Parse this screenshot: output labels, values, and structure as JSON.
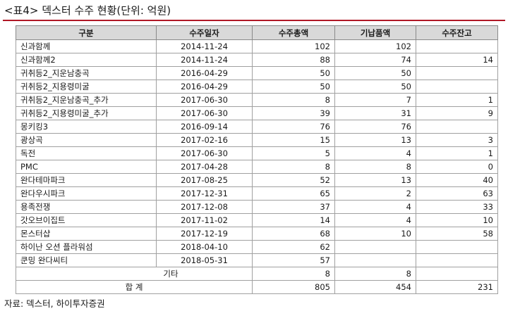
{
  "caption": "<표4>  덱스터 수주 현황(단위: 억원)",
  "columns": [
    "구분",
    "수주일자",
    "수주총액",
    "기납품액",
    "수주잔고"
  ],
  "rows": [
    {
      "name": "신과함께",
      "date": "2014-11-24",
      "total": "102",
      "delivered": "102",
      "backlog": ""
    },
    {
      "name": "신과함께2",
      "date": "2014-11-24",
      "total": "88",
      "delivered": "74",
      "backlog": "14"
    },
    {
      "name": "귀취등2_지운남충곡",
      "date": "2016-04-29",
      "total": "50",
      "delivered": "50",
      "backlog": ""
    },
    {
      "name": "귀취등2_지용령미굴",
      "date": "2016-04-29",
      "total": "50",
      "delivered": "50",
      "backlog": ""
    },
    {
      "name": "귀취등2_지운남충곡_추가",
      "date": "2017-06-30",
      "total": "8",
      "delivered": "7",
      "backlog": "1"
    },
    {
      "name": "귀취등2_지용령미굴_추가",
      "date": "2017-06-30",
      "total": "39",
      "delivered": "31",
      "backlog": "9"
    },
    {
      "name": "몽키킹3",
      "date": "2016-09-14",
      "total": "76",
      "delivered": "76",
      "backlog": ""
    },
    {
      "name": "광상곡",
      "date": "2017-02-16",
      "total": "15",
      "delivered": "13",
      "backlog": "3"
    },
    {
      "name": "독전",
      "date": "2017-06-30",
      "total": "5",
      "delivered": "4",
      "backlog": "1"
    },
    {
      "name": "PMC",
      "date": "2017-04-28",
      "total": "8",
      "delivered": "8",
      "backlog": "0"
    },
    {
      "name": "완다테마파크",
      "date": "2017-08-25",
      "total": "52",
      "delivered": "13",
      "backlog": "40"
    },
    {
      "name": "완다우시파크",
      "date": "2017-12-31",
      "total": "65",
      "delivered": "2",
      "backlog": "63"
    },
    {
      "name": "용족전쟁",
      "date": "2017-12-08",
      "total": "37",
      "delivered": "4",
      "backlog": "33"
    },
    {
      "name": "갓오브이집트",
      "date": "2017-11-02",
      "total": "14",
      "delivered": "4",
      "backlog": "10"
    },
    {
      "name": "몬스터샵",
      "date": "2017-12-19",
      "total": "68",
      "delivered": "10",
      "backlog": "58"
    },
    {
      "name": "하이난 오션 플라워섬",
      "date": "2018-04-10",
      "total": "62",
      "delivered": "",
      "backlog": ""
    },
    {
      "name": "쿤밍 완다씨티",
      "date": "2018-05-31",
      "total": "57",
      "delivered": "",
      "backlog": ""
    }
  ],
  "etc": {
    "label": "기타",
    "total": "8",
    "delivered": "8",
    "backlog": ""
  },
  "sum": {
    "label": "합 계",
    "total": "805",
    "delivered": "454",
    "backlog": "231"
  },
  "source": "자료: 덱스터, 하이투자증권"
}
